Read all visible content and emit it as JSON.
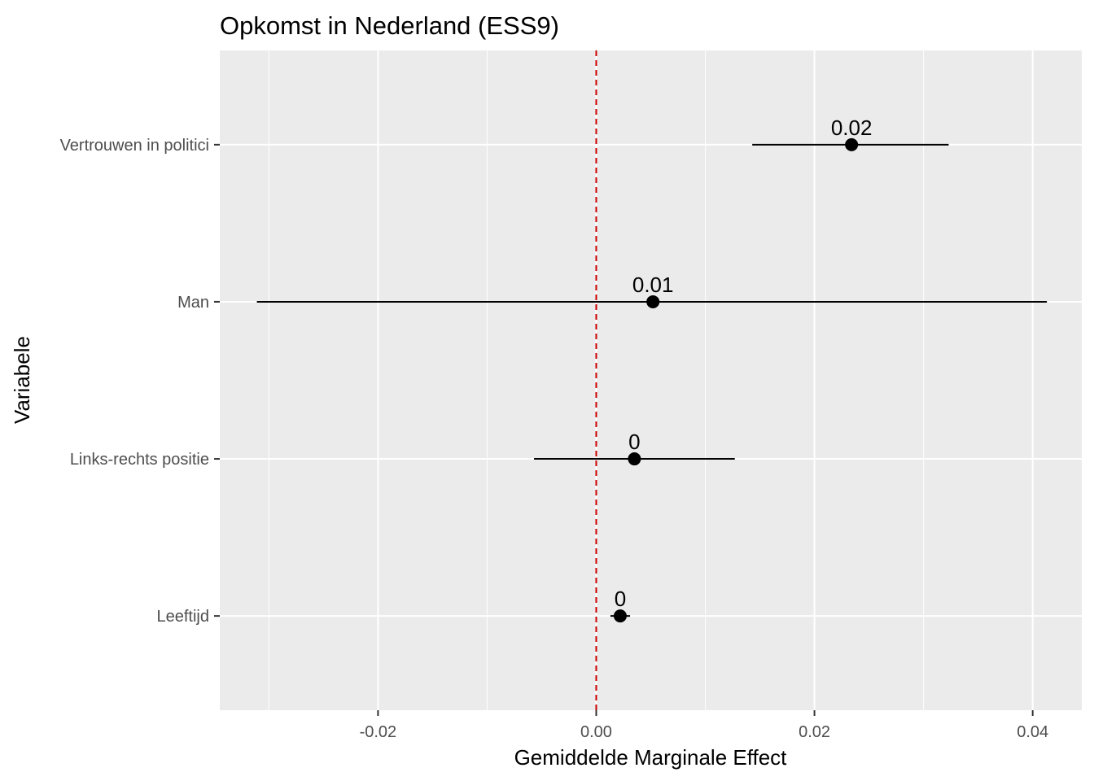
{
  "chart_data": {
    "type": "point-range",
    "title": "Opkomst in Nederland (ESS9)",
    "xlabel": "Gemiddelde Marginale Effect",
    "ylabel": "Variabele",
    "xlim": [
      -0.0345,
      0.0445
    ],
    "x_ticks": [
      -0.02,
      0.0,
      0.02,
      0.04
    ],
    "x_tick_labels": [
      "-0.02",
      "0.00",
      "0.02",
      "0.04"
    ],
    "reference_line": {
      "x": 0,
      "style": "dashed",
      "color": "#cc0000"
    },
    "grid": true,
    "panel_background": "#ebebeb",
    "categories": [
      "Vertrouwen in politici",
      "Man",
      "Links-rechts positie",
      "Leeftijd"
    ],
    "points": [
      {
        "variable": "Vertrouwen in politici",
        "estimate": 0.0234,
        "lower": 0.0143,
        "upper": 0.0323,
        "label": "0.02"
      },
      {
        "variable": "Man",
        "estimate": 0.0052,
        "lower": -0.0311,
        "upper": 0.0413,
        "label": "0.01"
      },
      {
        "variable": "Links-rechts positie",
        "estimate": 0.0035,
        "lower": -0.0057,
        "upper": 0.0127,
        "label": "0"
      },
      {
        "variable": "Leeftijd",
        "estimate": 0.0022,
        "lower": 0.0013,
        "upper": 0.0031,
        "label": "0"
      }
    ]
  }
}
